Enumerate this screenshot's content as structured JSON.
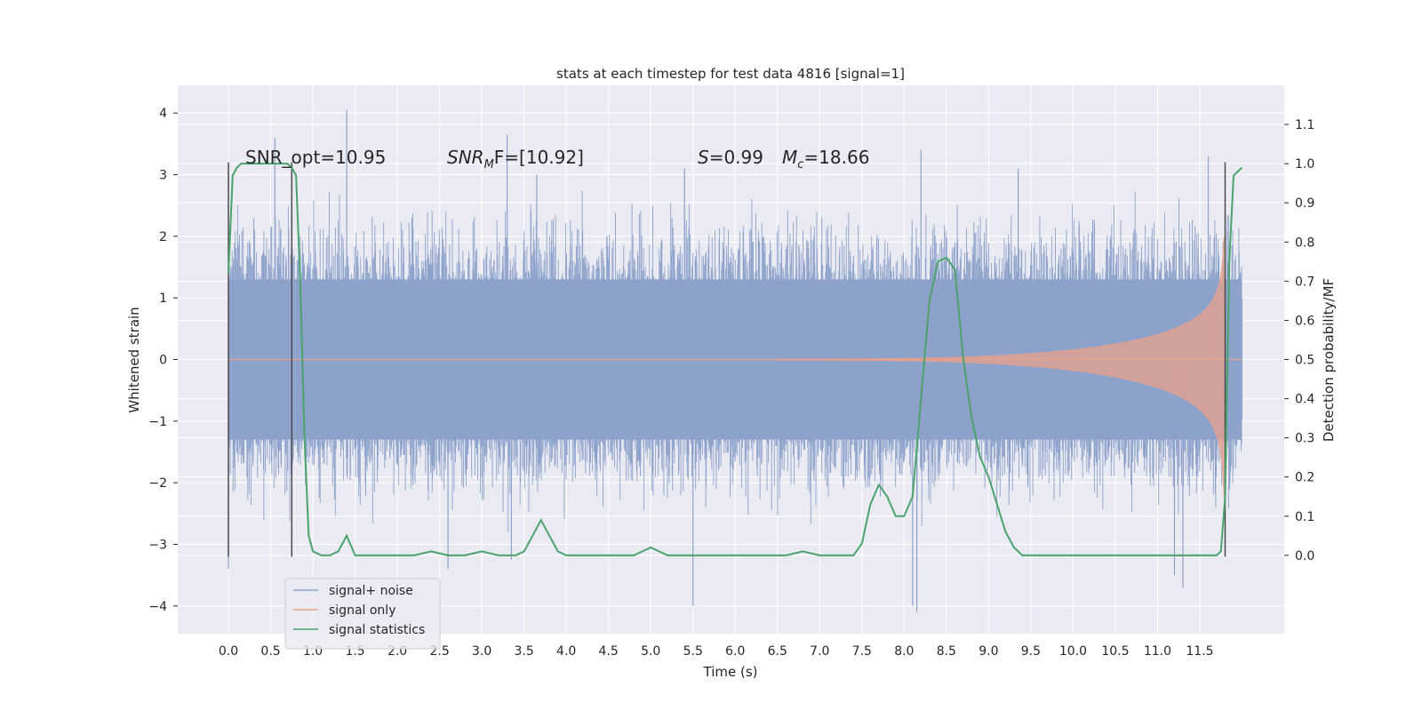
{
  "chart_data": {
    "type": "line",
    "title": "stats at each timestep for test data 4816 [signal=1]",
    "xlabel": "Time (s)",
    "ylabel": "Whitened strain",
    "ylabel_right": "Detection probability/MF",
    "xlim": [
      -0.6,
      12.5
    ],
    "ylim": [
      -4.45,
      4.45
    ],
    "ylim_right": [
      -0.2,
      1.2
    ],
    "x_ticks": [
      "0.0",
      "0.5",
      "1.0",
      "1.5",
      "2.0",
      "2.5",
      "3.0",
      "3.5",
      "4.0",
      "4.5",
      "5.0",
      "5.5",
      "6.0",
      "6.5",
      "7.0",
      "7.5",
      "8.0",
      "8.5",
      "9.0",
      "9.5",
      "10.0",
      "10.5",
      "11.0",
      "11.5"
    ],
    "y_ticks": [
      "4",
      "3",
      "2",
      "1",
      "0",
      "−1",
      "−2",
      "−3",
      "−4"
    ],
    "y_ticks_right": [
      "1.1",
      "1.0",
      "0.9",
      "0.8",
      "0.7",
      "0.6",
      "0.5",
      "0.4",
      "0.3",
      "0.2",
      "0.1",
      "0.0"
    ],
    "grid": true,
    "legend_position": "lower-left",
    "annotations": {
      "snr_opt": "SNR_opt=10.95",
      "snr_mf_sym": "SNR",
      "snr_mf_sub": "M",
      "snr_mf_rest": "F=[10.92]",
      "s_sym": "S",
      "s_rest": "=0.99",
      "mc_sym": "M",
      "mc_sub": "c",
      "mc_rest": "=18.66"
    },
    "vlines_x": [
      0.0,
      0.75,
      11.8
    ],
    "series": [
      {
        "name": "signal+ noise",
        "color": "#8da2cb",
        "x_range": [
          0.0,
          12.0
        ],
        "envelope_typical": 2.0,
        "peaks": [
          [
            0.0,
            -3.4
          ],
          [
            1.4,
            4.05
          ],
          [
            0.55,
            3.6
          ],
          [
            3.3,
            3.65
          ],
          [
            3.35,
            -3.25
          ],
          [
            2.6,
            -3.4
          ],
          [
            5.5,
            -4.0
          ],
          [
            8.1,
            -4.0
          ],
          [
            8.15,
            -4.1
          ],
          [
            11.3,
            -3.7
          ],
          [
            11.2,
            -3.5
          ],
          [
            11.6,
            3.3
          ],
          [
            9.35,
            3.1
          ],
          [
            8.2,
            3.4
          ],
          [
            5.4,
            3.1
          ],
          [
            3.65,
            3.0
          ]
        ]
      },
      {
        "name": "signal only",
        "color": "#e8a08b",
        "x_range": [
          6.5,
          11.8
        ],
        "peak_amplitude": 2.0
      },
      {
        "name": "signal statistics",
        "color": "#4ba36c",
        "axis": "right",
        "x": [
          0.0,
          0.05,
          0.1,
          0.15,
          0.2,
          0.3,
          0.4,
          0.5,
          0.6,
          0.7,
          0.75,
          0.8,
          0.85,
          0.9,
          0.95,
          1.0,
          1.1,
          1.2,
          1.3,
          1.4,
          1.5,
          1.6,
          1.8,
          2.0,
          2.2,
          2.4,
          2.6,
          2.8,
          3.0,
          3.2,
          3.4,
          3.5,
          3.6,
          3.7,
          3.8,
          3.9,
          4.0,
          4.2,
          4.4,
          4.6,
          4.8,
          5.0,
          5.2,
          5.4,
          5.6,
          6.0,
          6.4,
          6.6,
          6.8,
          7.0,
          7.2,
          7.4,
          7.5,
          7.6,
          7.7,
          7.8,
          7.9,
          8.0,
          8.1,
          8.2,
          8.3,
          8.4,
          8.5,
          8.6,
          8.7,
          8.8,
          8.9,
          9.0,
          9.1,
          9.2,
          9.3,
          9.4,
          9.6,
          10.0,
          10.5,
          11.0,
          11.5,
          11.7,
          11.75,
          11.8,
          11.85,
          11.9,
          11.95,
          12.0
        ],
        "y": [
          0.72,
          0.97,
          0.99,
          1.0,
          1.0,
          1.0,
          1.0,
          1.0,
          1.0,
          1.0,
          0.99,
          0.97,
          0.7,
          0.3,
          0.05,
          0.01,
          0.0,
          0.0,
          0.01,
          0.05,
          0.0,
          0.0,
          0.0,
          0.0,
          0.0,
          0.01,
          0.0,
          0.0,
          0.01,
          0.0,
          0.0,
          0.01,
          0.05,
          0.09,
          0.05,
          0.01,
          0.0,
          0.0,
          0.0,
          0.0,
          0.0,
          0.02,
          0.0,
          0.0,
          0.0,
          0.0,
          0.0,
          0.0,
          0.01,
          0.0,
          0.0,
          0.0,
          0.03,
          0.13,
          0.18,
          0.15,
          0.1,
          0.1,
          0.15,
          0.4,
          0.65,
          0.75,
          0.76,
          0.73,
          0.5,
          0.35,
          0.25,
          0.2,
          0.13,
          0.06,
          0.02,
          0.0,
          0.0,
          0.0,
          0.0,
          0.0,
          0.0,
          0.0,
          0.01,
          0.15,
          0.75,
          0.97,
          0.98,
          0.99
        ]
      }
    ]
  }
}
